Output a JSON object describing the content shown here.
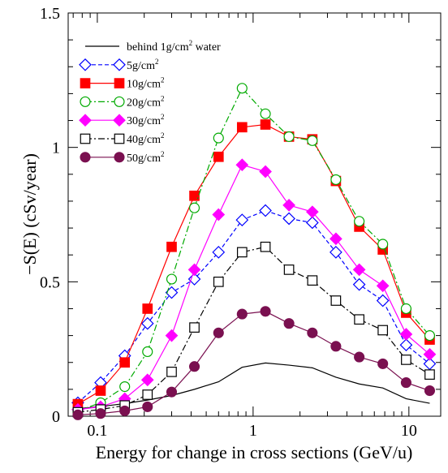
{
  "chart_data": {
    "type": "line",
    "title": "",
    "xlabel": "Energy for change in cross sections (GeV/u)",
    "ylabel": "−S(E) (cSv/year)",
    "xscale": "log",
    "xlim": [
      0.065,
      16
    ],
    "ylim": [
      0,
      1.5
    ],
    "grid": false,
    "legend_position": "top-left",
    "x_ticks": [
      {
        "value": 0.1,
        "label": "0.1"
      },
      {
        "value": 1,
        "label": "1"
      },
      {
        "value": 10,
        "label": "10"
      }
    ],
    "y_ticks": [
      {
        "value": 0,
        "label": "0"
      },
      {
        "value": 0.5,
        "label": "0.5"
      },
      {
        "value": 1,
        "label": "1"
      },
      {
        "value": 1.5,
        "label": "1.5"
      }
    ],
    "x": [
      0.075,
      0.105,
      0.15,
      0.21,
      0.3,
      0.42,
      0.6,
      0.85,
      1.2,
      1.7,
      2.4,
      3.4,
      4.8,
      6.8,
      9.6,
      13.6
    ],
    "series": [
      {
        "name": "behind 1g/cm",
        "name_sup": "2",
        "name_tail": " water",
        "marker": "none",
        "color": "#000000",
        "dash": "",
        "values": [
          0.028,
          0.036,
          0.047,
          0.06,
          0.077,
          0.1,
          0.128,
          0.182,
          0.198,
          0.19,
          0.18,
          0.145,
          0.12,
          0.105,
          0.065,
          0.048
        ]
      },
      {
        "name": "5g/cm",
        "name_sup": "2",
        "name_tail": "",
        "marker": "diamond-open",
        "color": "#0000ff",
        "dash": "5,3",
        "values": [
          0.05,
          0.125,
          0.225,
          0.345,
          0.46,
          0.51,
          0.61,
          0.73,
          0.765,
          0.735,
          0.72,
          0.61,
          0.49,
          0.43,
          0.265,
          0.195
        ]
      },
      {
        "name": "10g/cm",
        "name_sup": "2",
        "name_tail": "",
        "marker": "square-filled",
        "color": "#ff0000",
        "dash": "",
        "values": [
          0.045,
          0.095,
          0.2,
          0.4,
          0.63,
          0.82,
          0.965,
          1.075,
          1.085,
          1.04,
          1.03,
          0.875,
          0.705,
          0.62,
          0.385,
          0.285
        ]
      },
      {
        "name": "20g/cm",
        "name_sup": "2",
        "name_tail": "",
        "marker": "circle-open",
        "color": "#00aa00",
        "dash": "8,3,2,3",
        "values": [
          0.02,
          0.05,
          0.11,
          0.24,
          0.51,
          0.775,
          1.035,
          1.22,
          1.125,
          1.04,
          1.025,
          0.88,
          0.725,
          0.64,
          0.4,
          0.3
        ]
      },
      {
        "name": "30g/cm",
        "name_sup": "2",
        "name_tail": "",
        "marker": "diamond-filled",
        "color": "#ff00ff",
        "dash": "",
        "values": [
          0.025,
          0.035,
          0.065,
          0.135,
          0.3,
          0.545,
          0.75,
          0.935,
          0.91,
          0.785,
          0.76,
          0.66,
          0.545,
          0.485,
          0.305,
          0.23
        ]
      },
      {
        "name": "40g/cm",
        "name_sup": "2",
        "name_tail": "",
        "marker": "square-open",
        "color": "#000000",
        "dash": "8,3,2,3",
        "values": [
          0.015,
          0.025,
          0.04,
          0.08,
          0.165,
          0.33,
          0.5,
          0.61,
          0.63,
          0.545,
          0.505,
          0.43,
          0.36,
          0.32,
          0.21,
          0.155
        ]
      },
      {
        "name": "50g/cm",
        "name_sup": "2",
        "name_tail": "",
        "marker": "circle-filled",
        "color": "#7a1050",
        "dash": "",
        "values": [
          0.005,
          0.01,
          0.02,
          0.035,
          0.09,
          0.185,
          0.31,
          0.38,
          0.39,
          0.345,
          0.31,
          0.26,
          0.22,
          0.195,
          0.125,
          0.095
        ]
      }
    ]
  }
}
